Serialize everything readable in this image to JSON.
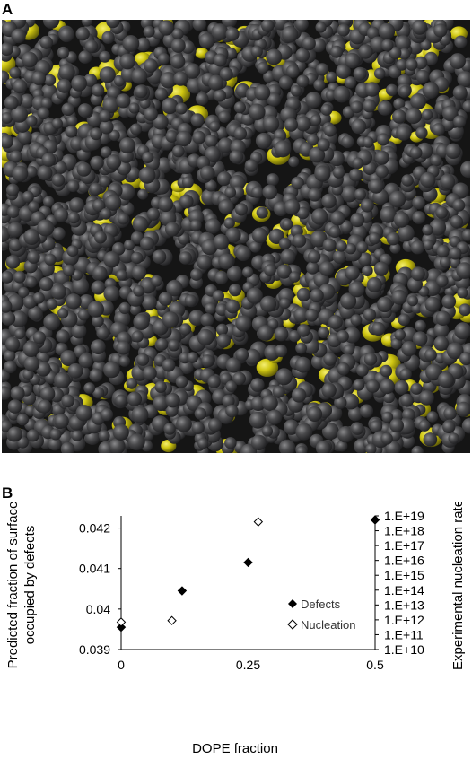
{
  "panels": {
    "a_label": "A",
    "b_label": "B"
  },
  "image_a": {
    "colors": {
      "dark": "#3c3c3e",
      "accent": "#d4cc10",
      "background": "#151515"
    }
  },
  "chart_data": {
    "type": "scatter",
    "xlabel": "DOPE fraction",
    "ylabel_left_line1": "Predicted fraction of surface",
    "ylabel_left_line2": "occupied by defects",
    "ylabel_right": "Experimental nucleation rate",
    "x_ticks": [
      "0",
      "0.25",
      "0.5"
    ],
    "x_tick_values": [
      0,
      0.25,
      0.5
    ],
    "xlim": [
      0,
      0.5
    ],
    "y_left_ticks": [
      "0.039",
      "0.04",
      "0.041",
      "0.042"
    ],
    "y_left_tick_values": [
      0.039,
      0.04,
      0.041,
      0.042
    ],
    "ylim_left": [
      0.039,
      0.0423
    ],
    "y_right_scale": "log10",
    "y_right_ticks": [
      "1.E+10",
      "1.E+11",
      "1.E+12",
      "1.E+13",
      "1.E+14",
      "1.E+15",
      "1.E+16",
      "1.E+17",
      "1.E+18",
      "1.E+19"
    ],
    "y_right_tick_exponents": [
      10,
      11,
      12,
      13,
      14,
      15,
      16,
      17,
      18,
      19
    ],
    "ylim_right_exponent": [
      10,
      19
    ],
    "series": [
      {
        "name": "Defects",
        "axis": "left",
        "marker": "filled-diamond",
        "color": "#000000",
        "x": [
          0,
          0.12,
          0.25,
          0.5
        ],
        "y": [
          0.03955,
          0.04045,
          0.04115,
          0.0422
        ]
      },
      {
        "name": "Nucleation",
        "axis": "right",
        "marker": "open-diamond",
        "color": "#000000",
        "x": [
          0,
          0.1,
          0.27
        ],
        "y_exponent": [
          11.85,
          11.95,
          18.6
        ]
      }
    ],
    "legend_position": "inside-bottom-right",
    "grid": false
  }
}
